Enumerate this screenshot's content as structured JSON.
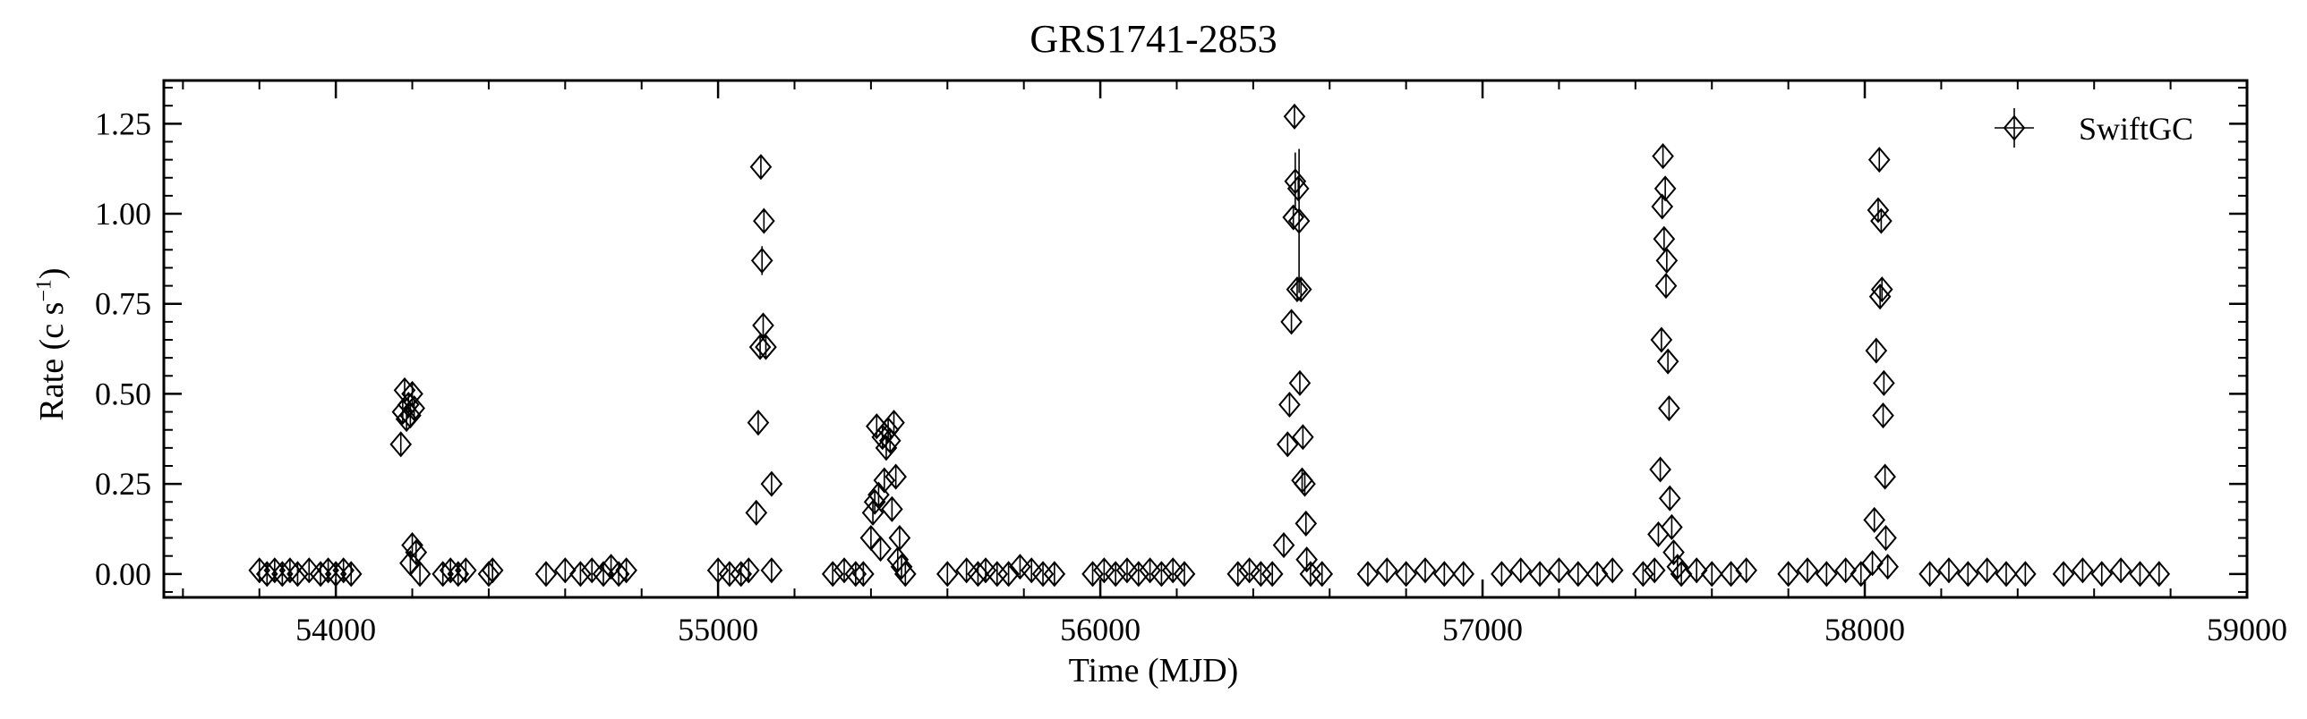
{
  "chart_data": {
    "type": "scatter",
    "title": "GRS1741-2853",
    "xlabel": "Time (MJD)",
    "ylabel": "Rate (c s",
    "ylabel_exponent": "−1",
    "ylabel_suffix": ")",
    "xlim": [
      53550,
      59000
    ],
    "ylim": [
      -0.065,
      1.37
    ],
    "x_ticks": [
      54000,
      55000,
      56000,
      57000,
      58000,
      59000
    ],
    "x_tick_labels": [
      "54000",
      "55000",
      "56000",
      "57000",
      "58000",
      "59000"
    ],
    "y_ticks": [
      0.0,
      0.25,
      0.5,
      0.75,
      1.0,
      1.25
    ],
    "y_tick_labels": [
      "0.00",
      "0.25",
      "0.50",
      "0.75",
      "1.00",
      "1.25"
    ],
    "x_minor_step": 200,
    "y_minor_step": 0.05,
    "grid": false,
    "legend": {
      "position": "top-right",
      "entries": [
        "SwiftGC"
      ]
    },
    "marker": "diamond-with-errorbar",
    "series": [
      {
        "name": "SwiftGC",
        "points": [
          {
            "x": 53800,
            "y": 0.01,
            "err": 0.005
          },
          {
            "x": 53820,
            "y": 0.0,
            "err": 0.005
          },
          {
            "x": 53840,
            "y": 0.01,
            "err": 0.005
          },
          {
            "x": 53860,
            "y": 0.0,
            "err": 0.005
          },
          {
            "x": 53880,
            "y": 0.01,
            "err": 0.005
          },
          {
            "x": 53900,
            "y": 0.0,
            "err": 0.005
          },
          {
            "x": 53930,
            "y": 0.01,
            "err": 0.005
          },
          {
            "x": 53960,
            "y": 0.0,
            "err": 0.005
          },
          {
            "x": 53980,
            "y": 0.01,
            "err": 0.005
          },
          {
            "x": 54000,
            "y": 0.0,
            "err": 0.005
          },
          {
            "x": 54020,
            "y": 0.01,
            "err": 0.005
          },
          {
            "x": 54040,
            "y": 0.0,
            "err": 0.005
          },
          {
            "x": 54170,
            "y": 0.36,
            "err": 0.01
          },
          {
            "x": 54175,
            "y": 0.45,
            "err": 0.02
          },
          {
            "x": 54180,
            "y": 0.51,
            "err": 0.02
          },
          {
            "x": 54185,
            "y": 0.43,
            "err": 0.02
          },
          {
            "x": 54190,
            "y": 0.47,
            "err": 0.02
          },
          {
            "x": 54195,
            "y": 0.44,
            "err": 0.02
          },
          {
            "x": 54200,
            "y": 0.5,
            "err": 0.02
          },
          {
            "x": 54205,
            "y": 0.46,
            "err": 0.02
          },
          {
            "x": 54200,
            "y": 0.08,
            "err": 0.01
          },
          {
            "x": 54210,
            "y": 0.06,
            "err": 0.01
          },
          {
            "x": 54195,
            "y": 0.03,
            "err": 0.01
          },
          {
            "x": 54220,
            "y": 0.0,
            "err": 0.005
          },
          {
            "x": 54280,
            "y": 0.0,
            "err": 0.005
          },
          {
            "x": 54300,
            "y": 0.01,
            "err": 0.005
          },
          {
            "x": 54320,
            "y": 0.0,
            "err": 0.005
          },
          {
            "x": 54340,
            "y": 0.01,
            "err": 0.005
          },
          {
            "x": 54400,
            "y": 0.0,
            "err": 0.005
          },
          {
            "x": 54410,
            "y": 0.01,
            "err": 0.005
          },
          {
            "x": 54550,
            "y": 0.0,
            "err": 0.005
          },
          {
            "x": 54600,
            "y": 0.01,
            "err": 0.005
          },
          {
            "x": 54640,
            "y": 0.0,
            "err": 0.005
          },
          {
            "x": 54670,
            "y": 0.01,
            "err": 0.005
          },
          {
            "x": 54700,
            "y": 0.0,
            "err": 0.005
          },
          {
            "x": 54720,
            "y": 0.02,
            "err": 0.005
          },
          {
            "x": 54740,
            "y": 0.0,
            "err": 0.005
          },
          {
            "x": 54760,
            "y": 0.01,
            "err": 0.005
          },
          {
            "x": 55000,
            "y": 0.01,
            "err": 0.005
          },
          {
            "x": 55030,
            "y": 0.0,
            "err": 0.005
          },
          {
            "x": 55060,
            "y": 0.0,
            "err": 0.005
          },
          {
            "x": 55080,
            "y": 0.01,
            "err": 0.005
          },
          {
            "x": 55100,
            "y": 0.17,
            "err": 0.01
          },
          {
            "x": 55105,
            "y": 0.42,
            "err": 0.02
          },
          {
            "x": 55110,
            "y": 0.63,
            "err": 0.03
          },
          {
            "x": 55112,
            "y": 1.13,
            "err": 0.02
          },
          {
            "x": 55115,
            "y": 0.87,
            "err": 0.04
          },
          {
            "x": 55118,
            "y": 0.69,
            "err": 0.03
          },
          {
            "x": 55120,
            "y": 0.98,
            "err": 0.02
          },
          {
            "x": 55125,
            "y": 0.63,
            "err": 0.02
          },
          {
            "x": 55140,
            "y": 0.25,
            "err": 0.02
          },
          {
            "x": 55140,
            "y": 0.01,
            "err": 0.005
          },
          {
            "x": 55300,
            "y": 0.0,
            "err": 0.005
          },
          {
            "x": 55330,
            "y": 0.01,
            "err": 0.005
          },
          {
            "x": 55360,
            "y": 0.0,
            "err": 0.005
          },
          {
            "x": 55380,
            "y": 0.0,
            "err": 0.005
          },
          {
            "x": 55400,
            "y": 0.1,
            "err": 0.01
          },
          {
            "x": 55405,
            "y": 0.17,
            "err": 0.01
          },
          {
            "x": 55410,
            "y": 0.2,
            "err": 0.02
          },
          {
            "x": 55415,
            "y": 0.41,
            "err": 0.02
          },
          {
            "x": 55420,
            "y": 0.22,
            "err": 0.02
          },
          {
            "x": 55425,
            "y": 0.07,
            "err": 0.01
          },
          {
            "x": 55430,
            "y": 0.38,
            "err": 0.02
          },
          {
            "x": 55435,
            "y": 0.26,
            "err": 0.02
          },
          {
            "x": 55440,
            "y": 0.35,
            "err": 0.02
          },
          {
            "x": 55445,
            "y": 0.4,
            "err": 0.02
          },
          {
            "x": 55450,
            "y": 0.37,
            "err": 0.02
          },
          {
            "x": 55455,
            "y": 0.18,
            "err": 0.02
          },
          {
            "x": 55460,
            "y": 0.42,
            "err": 0.02
          },
          {
            "x": 55465,
            "y": 0.27,
            "err": 0.02
          },
          {
            "x": 55470,
            "y": 0.04,
            "err": 0.01
          },
          {
            "x": 55475,
            "y": 0.1,
            "err": 0.01
          },
          {
            "x": 55480,
            "y": 0.02,
            "err": 0.01
          },
          {
            "x": 55490,
            "y": 0.0,
            "err": 0.005
          },
          {
            "x": 55600,
            "y": 0.0,
            "err": 0.005
          },
          {
            "x": 55650,
            "y": 0.01,
            "err": 0.005
          },
          {
            "x": 55680,
            "y": 0.0,
            "err": 0.005
          },
          {
            "x": 55700,
            "y": 0.01,
            "err": 0.005
          },
          {
            "x": 55730,
            "y": 0.0,
            "err": 0.005
          },
          {
            "x": 55760,
            "y": 0.0,
            "err": 0.005
          },
          {
            "x": 55790,
            "y": 0.02,
            "err": 0.005
          },
          {
            "x": 55820,
            "y": 0.01,
            "err": 0.005
          },
          {
            "x": 55850,
            "y": 0.0,
            "err": 0.005
          },
          {
            "x": 55880,
            "y": 0.0,
            "err": 0.005
          },
          {
            "x": 55980,
            "y": 0.0,
            "err": 0.005
          },
          {
            "x": 56010,
            "y": 0.01,
            "err": 0.005
          },
          {
            "x": 56040,
            "y": 0.0,
            "err": 0.005
          },
          {
            "x": 56070,
            "y": 0.01,
            "err": 0.005
          },
          {
            "x": 56100,
            "y": 0.0,
            "err": 0.005
          },
          {
            "x": 56130,
            "y": 0.01,
            "err": 0.005
          },
          {
            "x": 56160,
            "y": 0.0,
            "err": 0.005
          },
          {
            "x": 56190,
            "y": 0.01,
            "err": 0.005
          },
          {
            "x": 56220,
            "y": 0.0,
            "err": 0.005
          },
          {
            "x": 56360,
            "y": 0.0,
            "err": 0.005
          },
          {
            "x": 56390,
            "y": 0.01,
            "err": 0.005
          },
          {
            "x": 56420,
            "y": 0.0,
            "err": 0.005
          },
          {
            "x": 56450,
            "y": 0.0,
            "err": 0.005
          },
          {
            "x": 56480,
            "y": 0.08,
            "err": 0.01
          },
          {
            "x": 56490,
            "y": 0.36,
            "err": 0.02
          },
          {
            "x": 56495,
            "y": 0.47,
            "err": 0.02
          },
          {
            "x": 56500,
            "y": 0.7,
            "err": 0.02
          },
          {
            "x": 56505,
            "y": 0.99,
            "err": 0.03
          },
          {
            "x": 56508,
            "y": 1.27,
            "err": 0.02
          },
          {
            "x": 56510,
            "y": 1.09,
            "err": 0.08
          },
          {
            "x": 56515,
            "y": 0.79,
            "err": 0.03
          },
          {
            "x": 56518,
            "y": 1.07,
            "err": 0.02
          },
          {
            "x": 56520,
            "y": 0.98,
            "err": 0.2
          },
          {
            "x": 56522,
            "y": 0.53,
            "err": 0.03
          },
          {
            "x": 56525,
            "y": 0.79,
            "err": 0.03
          },
          {
            "x": 56528,
            "y": 0.26,
            "err": 0.02
          },
          {
            "x": 56530,
            "y": 0.38,
            "err": 0.02
          },
          {
            "x": 56535,
            "y": 0.25,
            "err": 0.02
          },
          {
            "x": 56538,
            "y": 0.14,
            "err": 0.02
          },
          {
            "x": 56540,
            "y": 0.04,
            "err": 0.01
          },
          {
            "x": 56550,
            "y": 0.0,
            "err": 0.005
          },
          {
            "x": 56580,
            "y": 0.0,
            "err": 0.005
          },
          {
            "x": 56700,
            "y": 0.0,
            "err": 0.005
          },
          {
            "x": 56750,
            "y": 0.01,
            "err": 0.005
          },
          {
            "x": 56800,
            "y": 0.0,
            "err": 0.005
          },
          {
            "x": 56850,
            "y": 0.01,
            "err": 0.005
          },
          {
            "x": 56900,
            "y": 0.0,
            "err": 0.005
          },
          {
            "x": 56950,
            "y": 0.0,
            "err": 0.005
          },
          {
            "x": 57050,
            "y": 0.0,
            "err": 0.005
          },
          {
            "x": 57100,
            "y": 0.01,
            "err": 0.005
          },
          {
            "x": 57150,
            "y": 0.0,
            "err": 0.005
          },
          {
            "x": 57200,
            "y": 0.01,
            "err": 0.005
          },
          {
            "x": 57250,
            "y": 0.0,
            "err": 0.005
          },
          {
            "x": 57300,
            "y": 0.0,
            "err": 0.005
          },
          {
            "x": 57340,
            "y": 0.01,
            "err": 0.005
          },
          {
            "x": 57420,
            "y": 0.0,
            "err": 0.005
          },
          {
            "x": 57450,
            "y": 0.01,
            "err": 0.005
          },
          {
            "x": 57460,
            "y": 0.11,
            "err": 0.01
          },
          {
            "x": 57465,
            "y": 0.29,
            "err": 0.02
          },
          {
            "x": 57468,
            "y": 0.65,
            "err": 0.02
          },
          {
            "x": 57470,
            "y": 1.02,
            "err": 0.03
          },
          {
            "x": 57472,
            "y": 1.16,
            "err": 0.02
          },
          {
            "x": 57475,
            "y": 0.93,
            "err": 0.03
          },
          {
            "x": 57478,
            "y": 1.07,
            "err": 0.03
          },
          {
            "x": 57480,
            "y": 0.8,
            "err": 0.03
          },
          {
            "x": 57482,
            "y": 0.87,
            "err": 0.03
          },
          {
            "x": 57485,
            "y": 0.59,
            "err": 0.03
          },
          {
            "x": 57488,
            "y": 0.46,
            "err": 0.02
          },
          {
            "x": 57490,
            "y": 0.21,
            "err": 0.02
          },
          {
            "x": 57495,
            "y": 0.13,
            "err": 0.02
          },
          {
            "x": 57500,
            "y": 0.06,
            "err": 0.01
          },
          {
            "x": 57510,
            "y": 0.02,
            "err": 0.01
          },
          {
            "x": 57520,
            "y": 0.0,
            "err": 0.005
          },
          {
            "x": 57560,
            "y": 0.01,
            "err": 0.005
          },
          {
            "x": 57600,
            "y": 0.0,
            "err": 0.005
          },
          {
            "x": 57650,
            "y": 0.0,
            "err": 0.005
          },
          {
            "x": 57690,
            "y": 0.01,
            "err": 0.005
          },
          {
            "x": 57800,
            "y": 0.0,
            "err": 0.005
          },
          {
            "x": 57850,
            "y": 0.01,
            "err": 0.005
          },
          {
            "x": 57900,
            "y": 0.0,
            "err": 0.005
          },
          {
            "x": 57950,
            "y": 0.01,
            "err": 0.005
          },
          {
            "x": 57990,
            "y": 0.0,
            "err": 0.005
          },
          {
            "x": 58020,
            "y": 0.03,
            "err": 0.01
          },
          {
            "x": 58025,
            "y": 0.15,
            "err": 0.02
          },
          {
            "x": 58030,
            "y": 0.62,
            "err": 0.02
          },
          {
            "x": 58035,
            "y": 1.01,
            "err": 0.03
          },
          {
            "x": 58038,
            "y": 1.15,
            "err": 0.02
          },
          {
            "x": 58040,
            "y": 0.77,
            "err": 0.03
          },
          {
            "x": 58043,
            "y": 0.98,
            "err": 0.03
          },
          {
            "x": 58045,
            "y": 0.79,
            "err": 0.03
          },
          {
            "x": 58048,
            "y": 0.44,
            "err": 0.02
          },
          {
            "x": 58050,
            "y": 0.53,
            "err": 0.02
          },
          {
            "x": 58053,
            "y": 0.27,
            "err": 0.02
          },
          {
            "x": 58055,
            "y": 0.1,
            "err": 0.02
          },
          {
            "x": 58060,
            "y": 0.02,
            "err": 0.01
          },
          {
            "x": 58170,
            "y": 0.0,
            "err": 0.005
          },
          {
            "x": 58220,
            "y": 0.01,
            "err": 0.005
          },
          {
            "x": 58270,
            "y": 0.0,
            "err": 0.005
          },
          {
            "x": 58320,
            "y": 0.01,
            "err": 0.005
          },
          {
            "x": 58370,
            "y": 0.0,
            "err": 0.005
          },
          {
            "x": 58420,
            "y": 0.0,
            "err": 0.005
          },
          {
            "x": 58520,
            "y": 0.0,
            "err": 0.005
          },
          {
            "x": 58570,
            "y": 0.01,
            "err": 0.005
          },
          {
            "x": 58620,
            "y": 0.0,
            "err": 0.005
          },
          {
            "x": 58670,
            "y": 0.01,
            "err": 0.005
          },
          {
            "x": 58720,
            "y": 0.0,
            "err": 0.005
          },
          {
            "x": 58770,
            "y": 0.0,
            "err": 0.005
          }
        ]
      }
    ]
  }
}
